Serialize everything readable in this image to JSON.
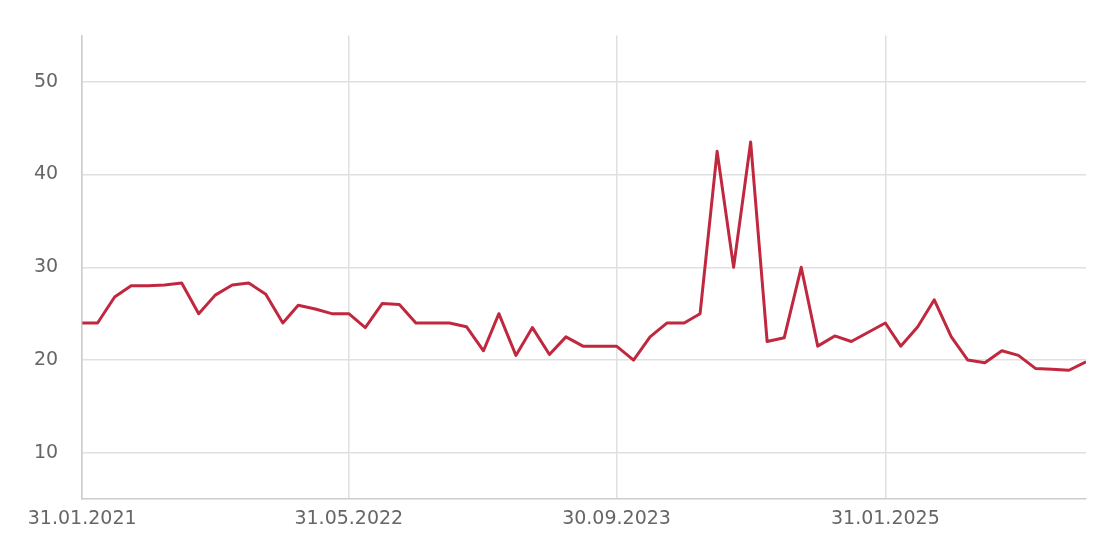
{
  "chart_data": {
    "type": "line",
    "x": [
      "2021-01-31",
      "2021-02-28",
      "2021-03-31",
      "2021-04-30",
      "2021-05-31",
      "2021-06-30",
      "2021-07-31",
      "2021-08-31",
      "2021-09-30",
      "2021-10-31",
      "2021-11-30",
      "2021-12-31",
      "2022-01-31",
      "2022-02-28",
      "2022-03-31",
      "2022-04-30",
      "2022-05-31",
      "2022-06-30",
      "2022-07-31",
      "2022-08-31",
      "2022-09-30",
      "2022-10-31",
      "2022-11-30",
      "2022-12-31",
      "2023-01-31",
      "2023-02-28",
      "2023-03-31",
      "2023-04-30",
      "2023-05-31",
      "2023-06-30",
      "2023-07-31",
      "2023-08-31",
      "2023-09-30",
      "2023-10-31",
      "2023-11-30",
      "2023-12-31",
      "2024-01-31",
      "2024-02-29",
      "2024-03-31",
      "2024-04-30",
      "2024-05-31",
      "2024-06-30",
      "2024-07-31",
      "2024-08-31",
      "2024-09-30",
      "2024-10-31",
      "2024-11-30",
      "2024-12-31",
      "2025-01-31",
      "2025-02-28",
      "2025-03-31",
      "2025-04-30",
      "2025-05-31",
      "2025-06-30",
      "2025-07-31",
      "2025-08-31",
      "2025-09-30",
      "2025-10-31",
      "2025-11-30",
      "2025-12-31",
      "2026-01-31"
    ],
    "series": [
      {
        "color": "#c0283f",
        "values": [
          24,
          24,
          26.8,
          28,
          28,
          28.1,
          28.3,
          25,
          27,
          28.1,
          28.3,
          27.1,
          24,
          25.9,
          25.5,
          25,
          25,
          23.5,
          26.1,
          26,
          24,
          24,
          24,
          23.6,
          21,
          25,
          20.5,
          23.5,
          20.6,
          22.5,
          21.5,
          21.5,
          21.5,
          20,
          22.5,
          24,
          24,
          25,
          42.5,
          30,
          43.5,
          22,
          22.4,
          30,
          21.5,
          22.6,
          22,
          23,
          24,
          21.5,
          23.6,
          26.5,
          22.5,
          20,
          19.7,
          21,
          20.5,
          19.1,
          19,
          18.9,
          19.8
        ]
      }
    ],
    "xlim": [
      "2021-01-31",
      "2026-01-31"
    ],
    "xticks": [
      {
        "value": "2021-01-31",
        "label": "31.01.2021"
      },
      {
        "value": "2022-05-31",
        "label": "31.05.2022"
      },
      {
        "value": "2023-09-30",
        "label": "30.09.2023"
      },
      {
        "value": "2025-01-31",
        "label": "31.01.2025"
      }
    ],
    "ylim": [
      5,
      55
    ],
    "yticks": [
      10,
      20,
      30,
      40,
      50
    ],
    "grid": true,
    "marker": "none",
    "line_style": "solid"
  }
}
